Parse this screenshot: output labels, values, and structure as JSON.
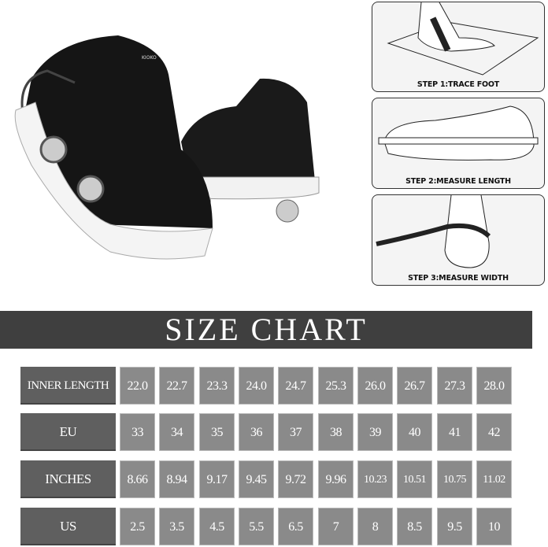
{
  "product_image": {
    "brand_mark": "KIOKO"
  },
  "steps": [
    {
      "label": "STEP 1:TRACE FOOT",
      "icon": "trace-foot-illustration"
    },
    {
      "label": "STEP 2:MEASURE LENGTH",
      "icon": "measure-length-illustration"
    },
    {
      "label": "STEP 3:MEASURE WIDTH",
      "icon": "measure-width-illustration"
    }
  ],
  "size_chart": {
    "title": "SIZE CHART",
    "rows": [
      {
        "label": "INNER LENGTH",
        "values": [
          "22.0",
          "22.7",
          "23.3",
          "24.0",
          "24.7",
          "25.3",
          "26.0",
          "26.7",
          "27.3",
          "28.0"
        ]
      },
      {
        "label": "EU",
        "values": [
          "33",
          "34",
          "35",
          "36",
          "37",
          "38",
          "39",
          "40",
          "41",
          "42"
        ]
      },
      {
        "label": "INCHES",
        "values": [
          "8.66",
          "8.94",
          "9.17",
          "9.45",
          "9.72",
          "9.96",
          "10.23",
          "10.51",
          "10.75",
          "11.02"
        ]
      },
      {
        "label": "US",
        "values": [
          "2.5",
          "3.5",
          "4.5",
          "5.5",
          "6.5",
          "7",
          "8",
          "8.5",
          "9.5",
          "10"
        ]
      }
    ]
  },
  "colors": {
    "banner": "#3f3f3f",
    "label_cell": "#5f5f5f",
    "value_cell": "#8a8a8a"
  }
}
